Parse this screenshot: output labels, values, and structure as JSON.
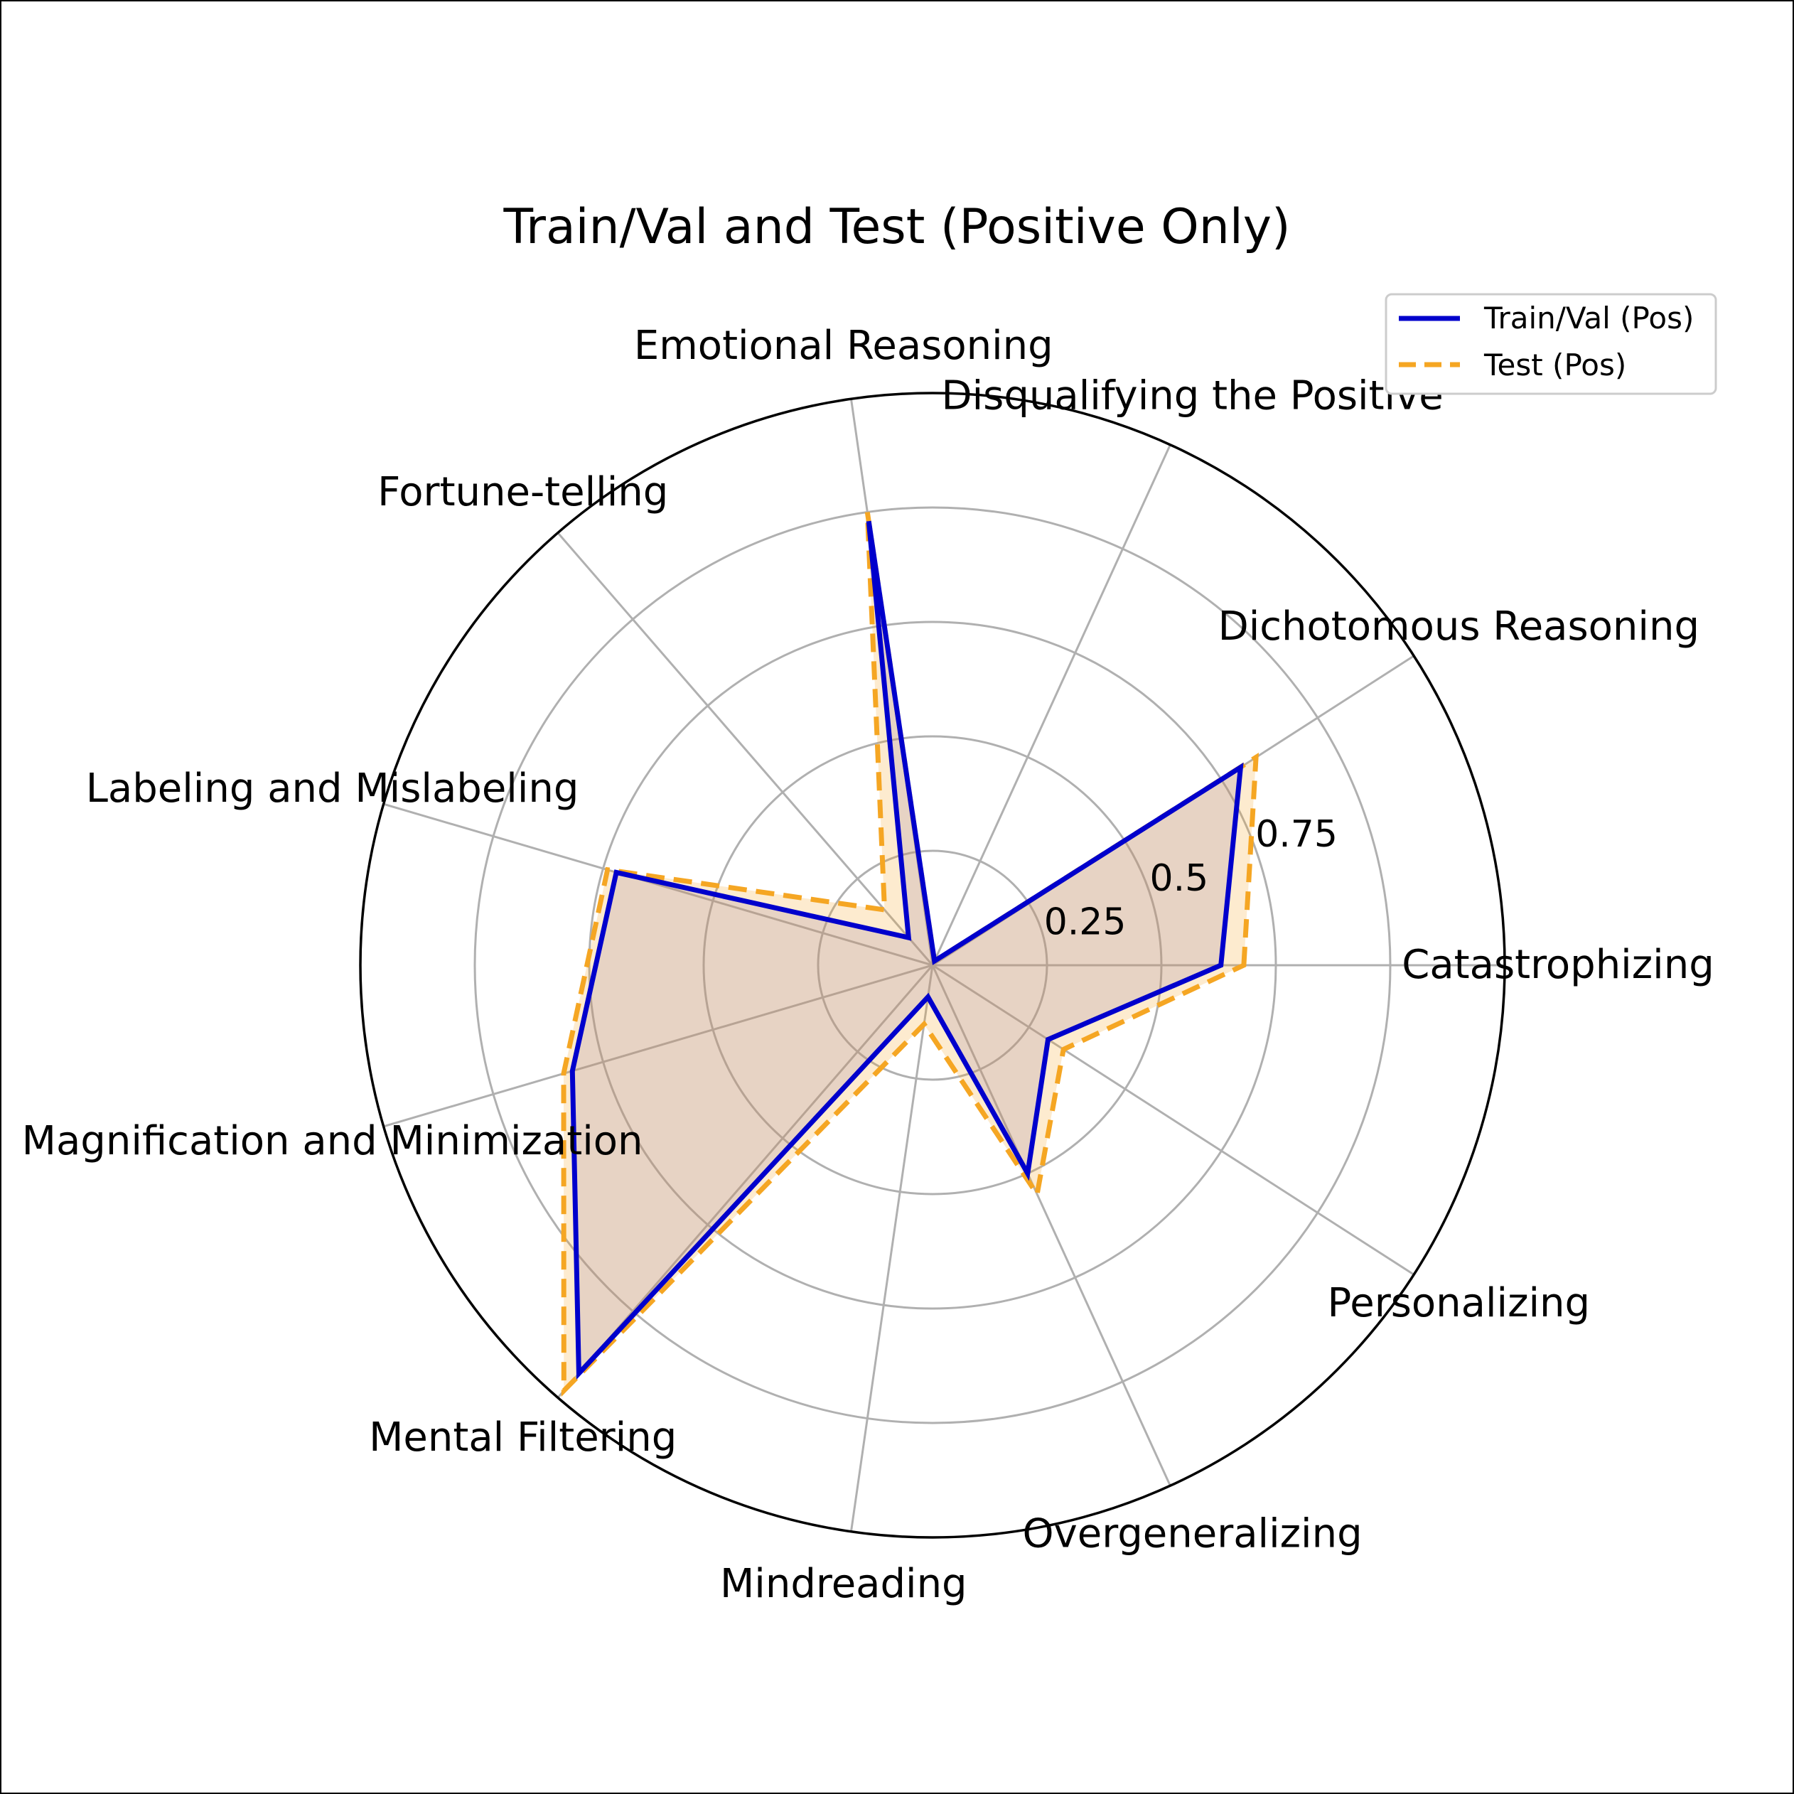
{
  "chart_data": {
    "type": "radar",
    "title": "Train/Val and Test (Positive Only)",
    "categories": [
      "Catastrophizing",
      "Dichotomous Reasoning",
      "Disqualifying the Positive",
      "Emotional Reasoning",
      "Fortune-telling",
      "Labeling and Mislabeling",
      "Magnification and Minimization",
      "Mental Filtering",
      "Mindreading",
      "Overgeneralizing",
      "Personalizing"
    ],
    "radial_ticks": [
      "0.25",
      "0.5",
      "0.75"
    ],
    "radial_tick_values": [
      0.25,
      0.5,
      0.75
    ],
    "radial_range": [
      0,
      1.25
    ],
    "grid": true,
    "legend_position": "top-right",
    "series": [
      {
        "name": "Train/Val (Pos)",
        "values": [
          0.63,
          0.8,
          0.01,
          0.98,
          0.08,
          0.72,
          0.82,
          1.18,
          0.07,
          0.5,
          0.3
        ],
        "color": "#0000cc",
        "line_style": "solid",
        "fill": "#9b7fa0"
      },
      {
        "name": "Test (Pos)",
        "values": [
          0.68,
          0.84,
          0.01,
          1.0,
          0.16,
          0.74,
          0.84,
          1.23,
          0.13,
          0.55,
          0.34
        ],
        "color": "#f5a623",
        "line_style": "dashed",
        "fill": "#f5a623"
      }
    ]
  }
}
